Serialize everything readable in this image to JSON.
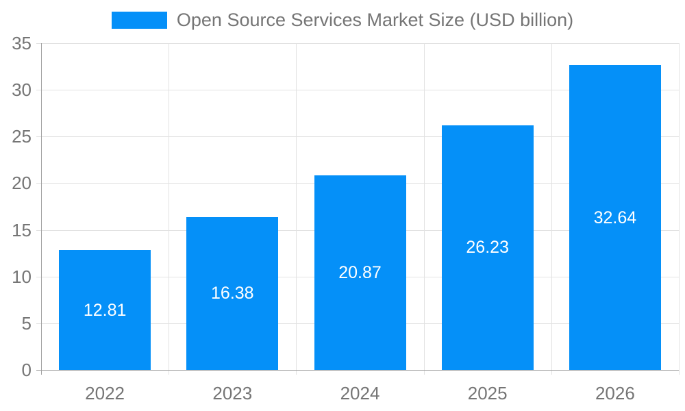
{
  "chart_data": {
    "type": "bar",
    "title": "Open Source Services Market Size (USD billion)",
    "categories": [
      "2022",
      "2023",
      "2024",
      "2025",
      "2026"
    ],
    "values": [
      12.81,
      16.38,
      20.87,
      26.23,
      32.64
    ],
    "xlabel": "",
    "ylabel": "",
    "ylim": [
      0,
      35
    ],
    "ytick_step": 5,
    "ytick_labels": [
      "0",
      "5",
      "10",
      "15",
      "20",
      "25",
      "30",
      "35"
    ],
    "grid": true,
    "legend_position": "top",
    "colors": {
      "bar": "#0590f8",
      "value_label": "#ffffff",
      "axis_label": "#757575",
      "legend_text": "#757575",
      "grid_line": "#e2e2e2",
      "axis_line": "#a0a0a0"
    }
  }
}
